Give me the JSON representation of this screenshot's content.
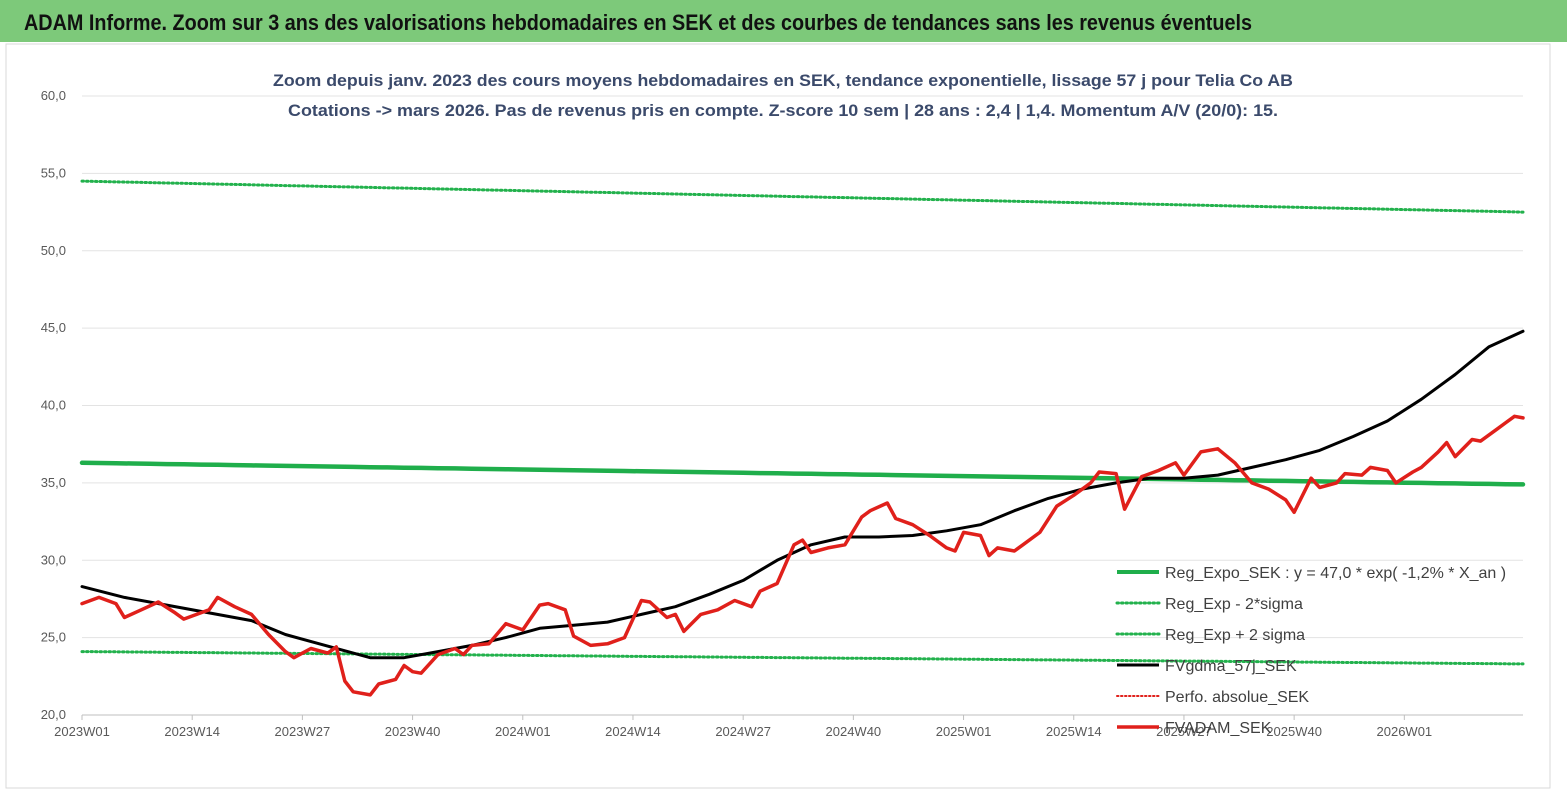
{
  "banner": {
    "title": "ADAM Informe. Zoom sur 3 ans des valorisations hebdomadaires en SEK et des courbes de tendances sans les revenus éventuels"
  },
  "colors": {
    "banner": "#7dc97a",
    "reg_expo": "#1fae4b",
    "reg_bands": "#22b14c",
    "fvgdma": "#000000",
    "fvadam": "#e0201b",
    "perfo": "#e0201b"
  },
  "chart_data": {
    "type": "line",
    "title": "Zoom depuis janv. 2023 des cours moyens hebdomadaires en SEK, tendance exponentielle, lissage 57 j pour Telia Co AB",
    "subtitle": "Cotations -> mars 2026. Pas de revenus pris en compte. Z-score 10 sem | 28 ans : 2,4 | 1,4. Momentum A/V (20/0): 15.",
    "xlabel": "",
    "ylabel": "",
    "ylim": [
      20,
      60
    ],
    "yticks": [
      "20,0",
      "25,0",
      "30,0",
      "35,0",
      "40,0",
      "45,0",
      "50,0",
      "55,0",
      "60,0"
    ],
    "ytick_values": [
      20,
      25,
      30,
      35,
      40,
      45,
      50,
      55,
      60
    ],
    "xticks": [
      "2023W01",
      "2023W14",
      "2023W27",
      "2023W40",
      "2024W01",
      "2024W14",
      "2024W27",
      "2024W40",
      "2025W01",
      "2025W14",
      "2025W27",
      "2025W40",
      "2026W01"
    ],
    "xtick_index": [
      0,
      13,
      26,
      39,
      52,
      65,
      78,
      91,
      104,
      117,
      130,
      143,
      156
    ],
    "xlim_index": [
      0,
      170
    ],
    "grid": "horizontal",
    "legend_position": "right",
    "series": [
      {
        "name": "Reg_Expo_SEK : y = 47,0 * exp( -1,2% *  X_an )",
        "key": "reg_expo",
        "start": 36.3,
        "end": 34.9
      },
      {
        "name": "Reg_Exp - 2*sigma",
        "key": "reg_lower",
        "start": 24.1,
        "end": 23.3
      },
      {
        "name": "Reg_Exp + 2 sigma",
        "key": "reg_upper",
        "start": 54.5,
        "end": 52.5
      },
      {
        "name": "FVgdma_57j_SEK",
        "key": "fvgdma",
        "points": [
          [
            0,
            28.3
          ],
          [
            5,
            27.6
          ],
          [
            10,
            27.1
          ],
          [
            15,
            26.6
          ],
          [
            20,
            26.1
          ],
          [
            24,
            25.2
          ],
          [
            28,
            24.6
          ],
          [
            32,
            24.0
          ],
          [
            34,
            23.7
          ],
          [
            38,
            23.7
          ],
          [
            42,
            24.1
          ],
          [
            46,
            24.5
          ],
          [
            50,
            25.0
          ],
          [
            54,
            25.6
          ],
          [
            58,
            25.8
          ],
          [
            62,
            26.0
          ],
          [
            66,
            26.5
          ],
          [
            70,
            27.0
          ],
          [
            74,
            27.8
          ],
          [
            78,
            28.7
          ],
          [
            82,
            30.0
          ],
          [
            86,
            31.0
          ],
          [
            90,
            31.5
          ],
          [
            94,
            31.5
          ],
          [
            98,
            31.6
          ],
          [
            102,
            31.9
          ],
          [
            106,
            32.3
          ],
          [
            110,
            33.2
          ],
          [
            114,
            34.0
          ],
          [
            118,
            34.6
          ],
          [
            122,
            35.0
          ],
          [
            126,
            35.3
          ],
          [
            130,
            35.3
          ],
          [
            134,
            35.5
          ],
          [
            138,
            36.0
          ],
          [
            142,
            36.5
          ],
          [
            146,
            37.1
          ],
          [
            150,
            38.0
          ],
          [
            154,
            39.0
          ],
          [
            158,
            40.4
          ],
          [
            162,
            42.0
          ],
          [
            166,
            43.8
          ],
          [
            170,
            44.8
          ]
        ]
      },
      {
        "name": "Perfo. absolue_SEK",
        "key": "perfo",
        "points": []
      },
      {
        "name": "FVADAM_SEK",
        "key": "fvadam",
        "points": [
          [
            0,
            27.2
          ],
          [
            2,
            27.6
          ],
          [
            4,
            27.2
          ],
          [
            5,
            26.3
          ],
          [
            7,
            26.8
          ],
          [
            9,
            27.3
          ],
          [
            11,
            26.6
          ],
          [
            12,
            26.2
          ],
          [
            14,
            26.6
          ],
          [
            15,
            26.8
          ],
          [
            16,
            27.6
          ],
          [
            18,
            27.0
          ],
          [
            20,
            26.5
          ],
          [
            22,
            25.2
          ],
          [
            24,
            24.1
          ],
          [
            25,
            23.7
          ],
          [
            27,
            24.3
          ],
          [
            29,
            24.0
          ],
          [
            30,
            24.4
          ],
          [
            31,
            22.2
          ],
          [
            32,
            21.5
          ],
          [
            34,
            21.3
          ],
          [
            35,
            22.0
          ],
          [
            37,
            22.3
          ],
          [
            38,
            23.2
          ],
          [
            39,
            22.8
          ],
          [
            40,
            22.7
          ],
          [
            42,
            23.9
          ],
          [
            44,
            24.3
          ],
          [
            45,
            23.9
          ],
          [
            46,
            24.5
          ],
          [
            48,
            24.6
          ],
          [
            50,
            25.9
          ],
          [
            52,
            25.5
          ],
          [
            54,
            27.1
          ],
          [
            55,
            27.2
          ],
          [
            57,
            26.8
          ],
          [
            58,
            25.1
          ],
          [
            60,
            24.5
          ],
          [
            62,
            24.6
          ],
          [
            64,
            25.0
          ],
          [
            66,
            27.4
          ],
          [
            67,
            27.3
          ],
          [
            69,
            26.3
          ],
          [
            70,
            26.5
          ],
          [
            71,
            25.4
          ],
          [
            73,
            26.5
          ],
          [
            75,
            26.8
          ],
          [
            77,
            27.4
          ],
          [
            79,
            27.0
          ],
          [
            80,
            28.0
          ],
          [
            82,
            28.5
          ],
          [
            84,
            31.0
          ],
          [
            85,
            31.3
          ],
          [
            86,
            30.5
          ],
          [
            88,
            30.8
          ],
          [
            90,
            31.0
          ],
          [
            92,
            32.8
          ],
          [
            93,
            33.2
          ],
          [
            95,
            33.7
          ],
          [
            96,
            32.7
          ],
          [
            98,
            32.3
          ],
          [
            100,
            31.6
          ],
          [
            102,
            30.8
          ],
          [
            103,
            30.6
          ],
          [
            104,
            31.8
          ],
          [
            106,
            31.6
          ],
          [
            107,
            30.3
          ],
          [
            108,
            30.8
          ],
          [
            110,
            30.6
          ],
          [
            111,
            31.0
          ],
          [
            113,
            31.8
          ],
          [
            115,
            33.5
          ],
          [
            117,
            34.2
          ],
          [
            119,
            35.0
          ],
          [
            120,
            35.7
          ],
          [
            122,
            35.6
          ],
          [
            123,
            33.3
          ],
          [
            125,
            35.4
          ],
          [
            127,
            35.8
          ],
          [
            129,
            36.3
          ],
          [
            130,
            35.5
          ],
          [
            132,
            37.0
          ],
          [
            134,
            37.2
          ],
          [
            136,
            36.3
          ],
          [
            138,
            35.0
          ],
          [
            140,
            34.6
          ],
          [
            142,
            33.9
          ],
          [
            143,
            33.1
          ],
          [
            145,
            35.3
          ],
          [
            146,
            34.7
          ],
          [
            148,
            35.0
          ],
          [
            149,
            35.6
          ],
          [
            151,
            35.5
          ],
          [
            152,
            36.0
          ],
          [
            154,
            35.8
          ],
          [
            155,
            35.0
          ],
          [
            157,
            35.7
          ],
          [
            158,
            36.0
          ],
          [
            160,
            37.0
          ],
          [
            161,
            37.6
          ],
          [
            162,
            36.7
          ],
          [
            164,
            37.8
          ],
          [
            165,
            37.7
          ],
          [
            167,
            38.5
          ],
          [
            168,
            38.9
          ],
          [
            169,
            39.3
          ],
          [
            170,
            39.2
          ]
        ]
      }
    ]
  }
}
